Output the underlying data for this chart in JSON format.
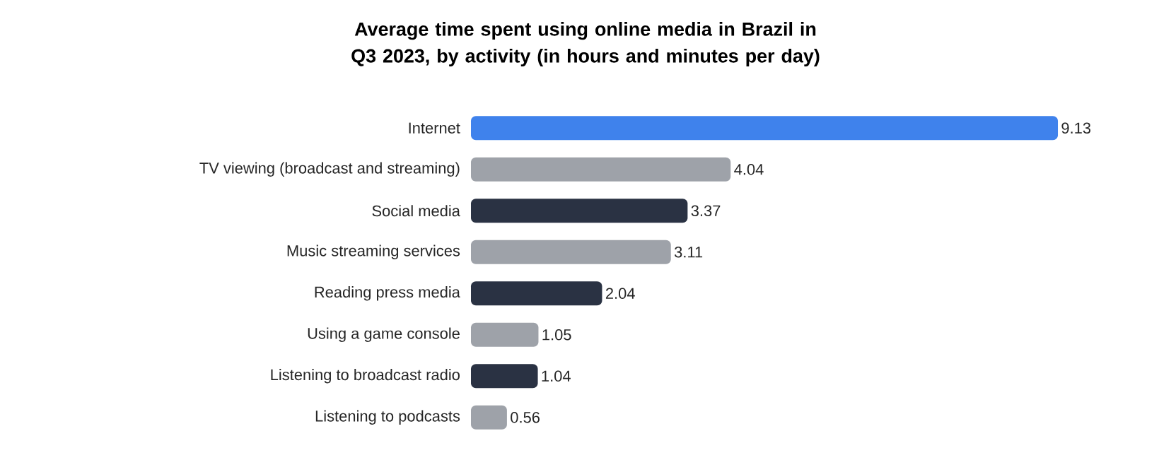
{
  "chart_data": {
    "type": "bar",
    "orientation": "horizontal",
    "title": "Average time spent using online media in Brazil in Q3 2023, by activity (in hours and minutes per day)",
    "categories": [
      "Internet",
      "TV viewing (broadcast and streaming)",
      "Social media",
      "Music streaming services",
      "Reading press media",
      "Using a game console",
      "Listening to broadcast radio",
      "Listening to podcasts"
    ],
    "values": [
      9.13,
      4.04,
      3.37,
      3.11,
      2.04,
      1.05,
      1.04,
      0.56
    ],
    "colors": [
      "#3f82ec",
      "#9ea2a9",
      "#2a3243",
      "#9ea2a9",
      "#2a3243",
      "#9ea2a9",
      "#2a3243",
      "#9ea2a9"
    ],
    "data_labels": true,
    "tick_labels": "y"
  }
}
